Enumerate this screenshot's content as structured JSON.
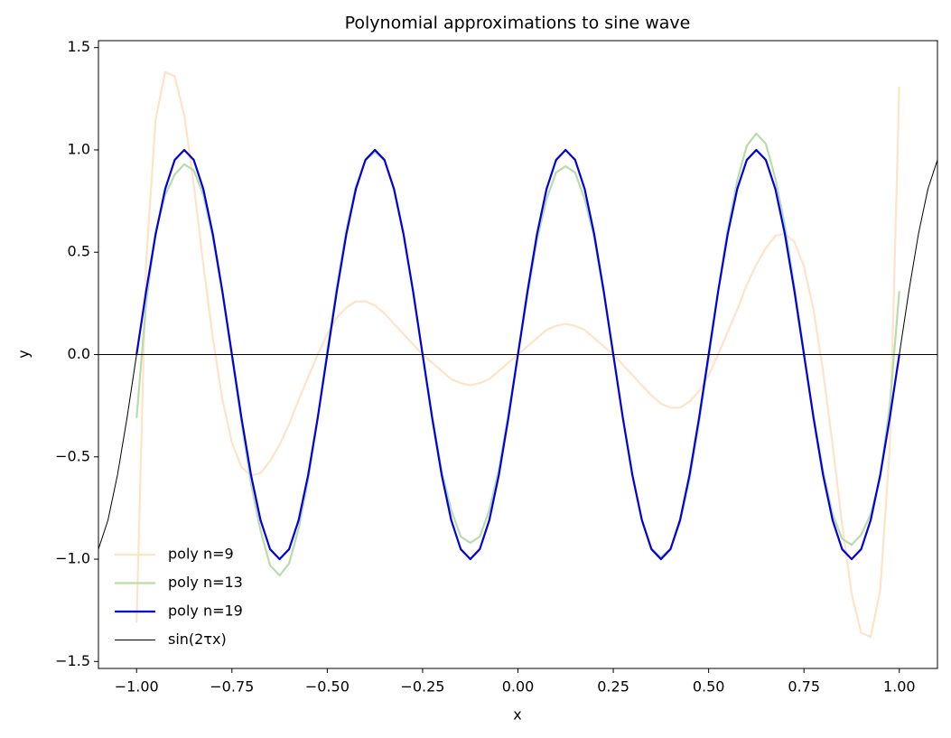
{
  "chart_data": {
    "type": "line",
    "title": "Polynomial approximations to sine wave",
    "xlabel": "x",
    "ylabel": "y",
    "xlim": [
      -1.1,
      1.1
    ],
    "ylim": [
      -1.534,
      1.534
    ],
    "xticks": [
      {
        "value": -1,
        "label": "−1.00"
      },
      {
        "value": -0.75,
        "label": "−0.75"
      },
      {
        "value": -0.5,
        "label": "−0.50"
      },
      {
        "value": -0.25,
        "label": "−0.25"
      },
      {
        "value": 0,
        "label": "0.00"
      },
      {
        "value": 0.25,
        "label": "0.25"
      },
      {
        "value": 0.5,
        "label": "0.50"
      },
      {
        "value": 0.75,
        "label": "0.75"
      },
      {
        "value": 1,
        "label": "1.00"
      }
    ],
    "yticks": [
      {
        "value": -1.5,
        "label": "−1.5"
      },
      {
        "value": -1,
        "label": "−1.0"
      },
      {
        "value": -0.5,
        "label": "−0.5"
      },
      {
        "value": 0,
        "label": "0.0"
      },
      {
        "value": 0.5,
        "label": "0.5"
      },
      {
        "value": 1,
        "label": "1.0"
      },
      {
        "value": 1.5,
        "label": "1.5"
      }
    ],
    "grid": false,
    "legend": "lower left",
    "axhline": 0,
    "x": [
      -1.1,
      -1.075,
      -1.05,
      -1.025,
      -1,
      -0.975,
      -0.95,
      -0.925,
      -0.9,
      -0.875,
      -0.85,
      -0.825,
      -0.8,
      -0.775,
      -0.75,
      -0.725,
      -0.7,
      -0.675,
      -0.65,
      -0.625,
      -0.6,
      -0.575,
      -0.55,
      -0.525,
      -0.5,
      -0.475,
      -0.45,
      -0.425,
      -0.4,
      -0.375,
      -0.35,
      -0.325,
      -0.3,
      -0.275,
      -0.25,
      -0.225,
      -0.2,
      -0.175,
      -0.15,
      -0.125,
      -0.1,
      -0.075,
      -0.05,
      -0.025,
      0,
      0.025,
      0.05,
      0.075,
      0.1,
      0.125,
      0.15,
      0.175,
      0.2,
      0.225,
      0.25,
      0.275,
      0.3,
      0.325,
      0.35,
      0.375,
      0.4,
      0.425,
      0.45,
      0.475,
      0.5,
      0.525,
      0.55,
      0.575,
      0.6,
      0.625,
      0.65,
      0.675,
      0.7,
      0.725,
      0.75,
      0.775,
      0.8,
      0.825,
      0.85,
      0.875,
      0.9,
      0.925,
      0.95,
      0.975,
      1,
      1.025,
      1.05,
      1.075,
      1.1
    ],
    "series": [
      {
        "name": "sin(2τx)",
        "color": "#000000",
        "width": 1,
        "values": [
          -0.951,
          -0.809,
          -0.588,
          -0.309,
          0,
          0.309,
          0.588,
          0.809,
          0.951,
          1,
          0.951,
          0.809,
          0.588,
          0.309,
          0,
          -0.309,
          -0.588,
          -0.809,
          -0.951,
          -1,
          -0.951,
          -0.809,
          -0.588,
          -0.309,
          0,
          0.309,
          0.588,
          0.809,
          0.951,
          1,
          0.951,
          0.809,
          0.588,
          0.309,
          0,
          -0.309,
          -0.588,
          -0.809,
          -0.951,
          -1,
          -0.951,
          -0.809,
          -0.588,
          -0.309,
          0,
          0.309,
          0.588,
          0.809,
          0.951,
          1,
          0.951,
          0.809,
          0.588,
          0.309,
          0,
          -0.309,
          -0.588,
          -0.809,
          -0.951,
          -1,
          -0.951,
          -0.809,
          -0.588,
          -0.309,
          0,
          0.309,
          0.588,
          0.809,
          0.951,
          1,
          0.951,
          0.809,
          0.588,
          0.309,
          0,
          -0.309,
          -0.588,
          -0.809,
          -0.951,
          -1,
          -0.951,
          -0.809,
          -0.588,
          -0.309,
          0,
          0.309,
          0.588,
          0.809,
          0.951
        ]
      },
      {
        "name": "poly n=9",
        "color": "#ffe3c7",
        "width": 2.2,
        "values": [
          null,
          null,
          null,
          null,
          -1.31,
          0.45,
          1.15,
          1.38,
          1.36,
          1.17,
          0.83,
          0.44,
          0.08,
          -0.22,
          -0.43,
          -0.55,
          -0.59,
          -0.58,
          -0.52,
          -0.44,
          -0.34,
          -0.22,
          -0.11,
          0,
          0.1,
          0.18,
          0.23,
          0.26,
          0.26,
          0.24,
          0.2,
          0.15,
          0.1,
          0.05,
          0,
          -0.04,
          -0.08,
          -0.12,
          -0.14,
          -0.15,
          -0.14,
          -0.12,
          -0.08,
          -0.04,
          0,
          0.04,
          0.08,
          0.12,
          0.14,
          0.15,
          0.14,
          0.12,
          0.08,
          0.04,
          0,
          -0.05,
          -0.1,
          -0.15,
          -0.2,
          -0.24,
          -0.26,
          -0.26,
          -0.23,
          -0.18,
          -0.1,
          0,
          0.11,
          0.22,
          0.34,
          0.44,
          0.52,
          0.58,
          0.59,
          0.55,
          0.43,
          0.22,
          -0.08,
          -0.44,
          -0.83,
          -1.17,
          -1.36,
          -1.38,
          -1.15,
          -0.45,
          1.31,
          null,
          null,
          null,
          null
        ]
      },
      {
        "name": "poly n=13",
        "color": "#b7dcaa",
        "width": 2.2,
        "values": [
          null,
          null,
          null,
          null,
          -0.31,
          0.25,
          0.6,
          0.78,
          0.88,
          0.93,
          0.9,
          0.78,
          0.57,
          0.3,
          -0.01,
          -0.33,
          -0.63,
          -0.86,
          -1.03,
          -1.08,
          -1.02,
          -0.85,
          -0.61,
          -0.31,
          0.02,
          0.33,
          0.61,
          0.82,
          0.95,
          0.99,
          0.95,
          0.81,
          0.59,
          0.31,
          0,
          -0.3,
          -0.57,
          -0.76,
          -0.89,
          -0.92,
          -0.89,
          -0.76,
          -0.56,
          -0.29,
          0,
          0.29,
          0.56,
          0.76,
          0.89,
          0.92,
          0.89,
          0.76,
          0.57,
          0.3,
          0,
          -0.31,
          -0.59,
          -0.81,
          -0.95,
          -0.99,
          -0.95,
          -0.82,
          -0.61,
          -0.33,
          -0.02,
          0.31,
          0.61,
          0.85,
          1.02,
          1.08,
          1.03,
          0.86,
          0.63,
          0.33,
          0.01,
          -0.3,
          -0.57,
          -0.78,
          -0.9,
          -0.93,
          -0.88,
          -0.78,
          -0.6,
          -0.25,
          0.31,
          null,
          null,
          null,
          null
        ]
      },
      {
        "name": "poly n=19",
        "color": "#0000dd",
        "width": 2.2,
        "values": [
          null,
          null,
          null,
          null,
          0,
          0.309,
          0.588,
          0.809,
          0.951,
          1,
          0.951,
          0.809,
          0.588,
          0.309,
          0,
          -0.309,
          -0.588,
          -0.809,
          -0.951,
          -1,
          -0.951,
          -0.809,
          -0.588,
          -0.309,
          0,
          0.309,
          0.588,
          0.809,
          0.951,
          1,
          0.951,
          0.809,
          0.588,
          0.309,
          0,
          -0.309,
          -0.588,
          -0.809,
          -0.951,
          -1,
          -0.951,
          -0.809,
          -0.588,
          -0.309,
          0,
          0.309,
          0.588,
          0.809,
          0.951,
          1,
          0.951,
          0.809,
          0.588,
          0.309,
          0,
          -0.309,
          -0.588,
          -0.809,
          -0.951,
          -1,
          -0.951,
          -0.809,
          -0.588,
          -0.309,
          0,
          0.309,
          0.588,
          0.809,
          0.951,
          1,
          0.951,
          0.809,
          0.588,
          0.309,
          0,
          -0.309,
          -0.588,
          -0.809,
          -0.951,
          -1,
          -0.951,
          -0.809,
          -0.588,
          -0.309,
          0,
          null,
          null,
          null,
          null
        ]
      }
    ]
  }
}
